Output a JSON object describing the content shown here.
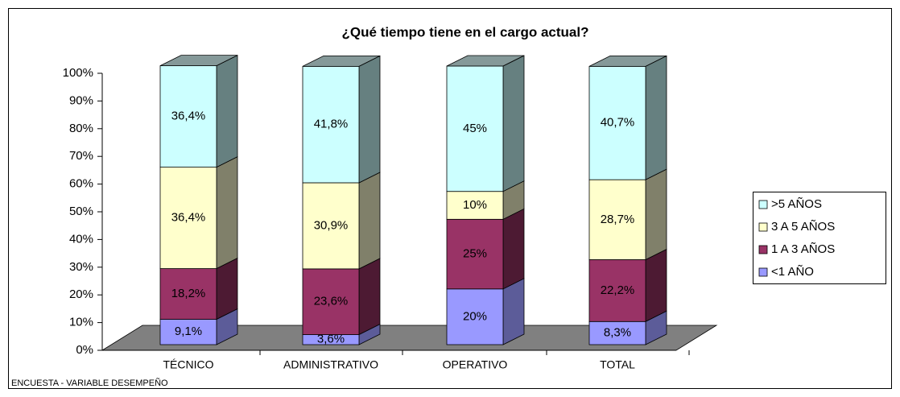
{
  "chart_data": {
    "type": "bar3d_stacked",
    "title": "¿Qué tiempo tiene en el cargo actual?",
    "footer": "ENCUESTA - VARIABLE DESEMPEÑO",
    "categories": [
      "TÉCNICO",
      "ADMINISTRATIVO",
      "OPERATIVO",
      "TOTAL"
    ],
    "series": [
      {
        "name": "<1 AÑO",
        "color": "#9999ff",
        "side": "#5c5c99",
        "values": [
          9.1,
          3.6,
          20,
          8.3
        ],
        "value_labels": [
          "9,1%",
          "3,6%",
          "20%",
          "8,3%"
        ]
      },
      {
        "name": "1 A 3 AÑOS",
        "color": "#993366",
        "side": "#4d1a33",
        "values": [
          18.2,
          23.6,
          25,
          22.2
        ],
        "value_labels": [
          "18,2%",
          "23,6%",
          "25%",
          "22,2%"
        ]
      },
      {
        "name": "3 A 5 AÑOS",
        "color": "#ffffcc",
        "side": "#80806a",
        "values": [
          36.4,
          30.9,
          10,
          28.7
        ],
        "value_labels": [
          "36,4%",
          "30,9%",
          "10%",
          "28,7%"
        ]
      },
      {
        "name": ">5 AÑOS",
        "color": "#ccffff",
        "side": "#668080",
        "values": [
          36.4,
          41.8,
          45,
          40.7
        ],
        "value_labels": [
          "36,4%",
          "41,8%",
          "45%",
          "40,7%"
        ]
      }
    ],
    "ylim": [
      0,
      100
    ],
    "yticks": [
      {
        "value": 0,
        "label": "0%"
      },
      {
        "value": 10,
        "label": "10%"
      },
      {
        "value": 20,
        "label": "20%"
      },
      {
        "value": 30,
        "label": "30%"
      },
      {
        "value": 40,
        "label": "40%"
      },
      {
        "value": 50,
        "label": "50%"
      },
      {
        "value": 60,
        "label": "60%"
      },
      {
        "value": 70,
        "label": "70%"
      },
      {
        "value": 80,
        "label": "80%"
      },
      {
        "value": 90,
        "label": "90%"
      },
      {
        "value": 100,
        "label": "100%"
      }
    ],
    "legend": "right"
  }
}
